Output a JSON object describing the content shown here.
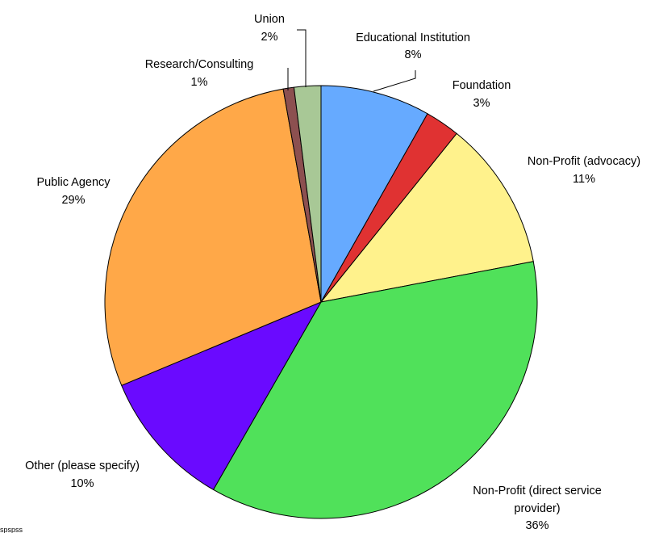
{
  "chart_data": {
    "type": "pie",
    "title": "",
    "slices": [
      {
        "label": "Educational Institution",
        "percent_label": "8%",
        "value": 8.2,
        "color": "#66aaff"
      },
      {
        "label": "Foundation",
        "percent_label": "3%",
        "value": 2.6,
        "color": "#e03232"
      },
      {
        "label": "Non-Profit (advocacy)",
        "percent_label": "11%",
        "value": 11.2,
        "color": "#fff28c"
      },
      {
        "label_lines": [
          "Non-Profit (direct service",
          "provider)"
        ],
        "percent_label": "36%",
        "value": 36.3,
        "color": "#50e15a"
      },
      {
        "label": "Other (please specify)",
        "percent_label": "10%",
        "value": 10.4,
        "color": "#6a0aff"
      },
      {
        "label": "Public Agency",
        "percent_label": "29%",
        "value": 28.5,
        "color": "#ffa848"
      },
      {
        "label": "Research/Consulting",
        "percent_label": "1%",
        "value": 0.8,
        "color": "#8c5050"
      },
      {
        "label": "Union",
        "percent_label": "2%",
        "value": 2.0,
        "color": "#a8c896"
      }
    ],
    "start": "12 o'clock",
    "direction": "clockwise",
    "legend": "none"
  },
  "corner_text": "spspss"
}
